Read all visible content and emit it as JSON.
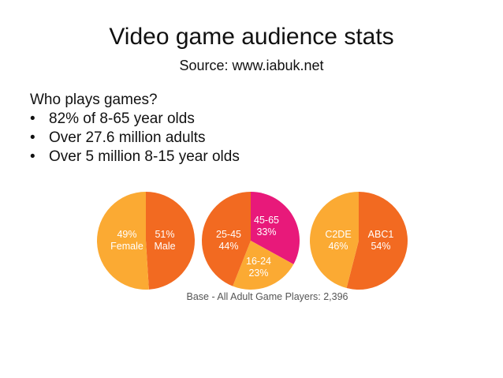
{
  "slide": {
    "title": "Video game audience stats",
    "subtitle": "Source: www.iabuk.net",
    "heading": "Who plays games?",
    "bullets": [
      "82% of 8-65 year olds",
      "Over 27.6 million adults",
      "Over 5 million 8-15 year olds"
    ]
  },
  "colors": {
    "orange_dark": "#f26a21",
    "orange_light": "#fbaa33",
    "pink": "#e8197a"
  },
  "chart_data": [
    {
      "type": "pie",
      "title": "",
      "slices": [
        {
          "label": "Female",
          "value": 49,
          "pct_label": "49%",
          "color": "#f26a21"
        },
        {
          "label": "Male",
          "value": 51,
          "pct_label": "51%",
          "color": "#fbaa33"
        }
      ]
    },
    {
      "type": "pie",
      "title": "",
      "slices": [
        {
          "label": "45-65",
          "value": 33,
          "pct_label": "33%",
          "color": "#e8197a"
        },
        {
          "label": "16-24",
          "value": 23,
          "pct_label": "23%",
          "color": "#fbaa33"
        },
        {
          "label": "25-45",
          "value": 44,
          "pct_label": "44%",
          "color": "#f26a21"
        }
      ]
    },
    {
      "type": "pie",
      "title": "",
      "slices": [
        {
          "label": "ABC1",
          "value": 54,
          "pct_label": "54%",
          "color": "#f26a21"
        },
        {
          "label": "C2DE",
          "value": 46,
          "pct_label": "46%",
          "color": "#fbaa33"
        }
      ]
    }
  ],
  "caption": "Base - All Adult Game Players: 2,396"
}
